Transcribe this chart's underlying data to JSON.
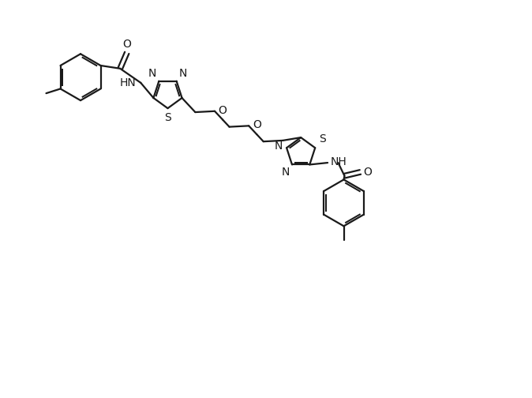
{
  "bg_color": "#ffffff",
  "line_color": "#1a1a1a",
  "bond_lw": 1.6,
  "font_size": 10,
  "figsize": [
    6.74,
    5.04
  ],
  "dpi": 100,
  "xlim": [
    0,
    13
  ],
  "ylim": [
    -1,
    9.5
  ]
}
